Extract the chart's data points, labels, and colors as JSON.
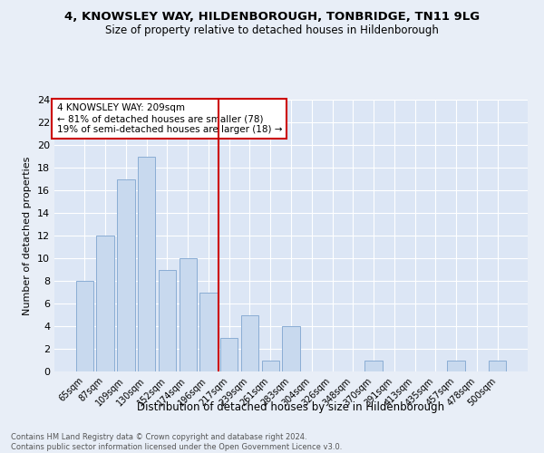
{
  "title1": "4, KNOWSLEY WAY, HILDENBOROUGH, TONBRIDGE, TN11 9LG",
  "title2": "Size of property relative to detached houses in Hildenborough",
  "xlabel": "Distribution of detached houses by size in Hildenborough",
  "ylabel": "Number of detached properties",
  "footnote1": "Contains HM Land Registry data © Crown copyright and database right 2024.",
  "footnote2": "Contains public sector information licensed under the Open Government Licence v3.0.",
  "annotation_line1": "4 KNOWSLEY WAY: 209sqm",
  "annotation_line2": "← 81% of detached houses are smaller (78)",
  "annotation_line3": "19% of semi-detached houses are larger (18) →",
  "bar_labels": [
    "65sqm",
    "87sqm",
    "109sqm",
    "130sqm",
    "152sqm",
    "174sqm",
    "196sqm",
    "217sqm",
    "239sqm",
    "261sqm",
    "283sqm",
    "304sqm",
    "326sqm",
    "348sqm",
    "370sqm",
    "391sqm",
    "413sqm",
    "435sqm",
    "457sqm",
    "478sqm",
    "500sqm"
  ],
  "bar_values": [
    8,
    12,
    17,
    19,
    9,
    10,
    7,
    3,
    5,
    1,
    4,
    0,
    0,
    0,
    1,
    0,
    0,
    0,
    1,
    0,
    1
  ],
  "bar_color": "#c8d9ee",
  "bar_edge_color": "#8aadd4",
  "marker_color": "#cc0000",
  "ylim": [
    0,
    24
  ],
  "yticks": [
    0,
    2,
    4,
    6,
    8,
    10,
    12,
    14,
    16,
    18,
    20,
    22,
    24
  ],
  "bg_color": "#dce6f5",
  "plot_bg_color": "#dce6f5",
  "outer_bg_color": "#e8eef7"
}
